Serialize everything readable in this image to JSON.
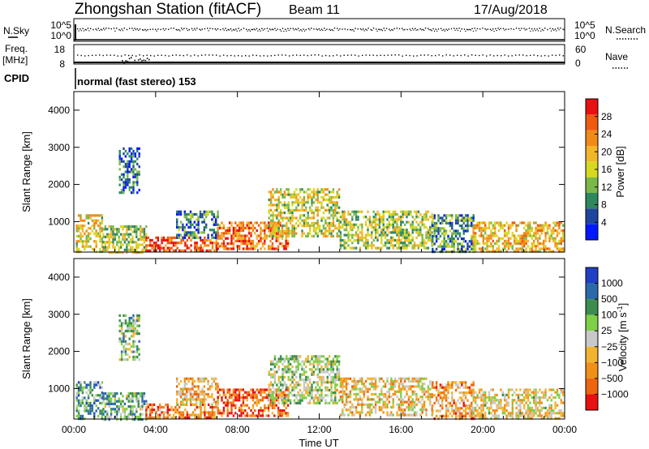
{
  "header": {
    "title": "Zhongshan Station (fitACF)",
    "beam": "Beam 11",
    "date": "17/Aug/2018"
  },
  "noise_panel": {
    "left_label": "N.Sky",
    "left_ticks": [
      "10^5",
      "10^0"
    ],
    "right_ticks": [
      "10^5",
      "10^0"
    ],
    "right_label": "N.Search"
  },
  "freq_panel": {
    "left_label_1": "Freq.",
    "left_label_2": "[MHz]",
    "left_ticks": [
      "18",
      "8"
    ],
    "right_ticks": [
      "60",
      "0"
    ],
    "right_label": "Nave"
  },
  "cpid": {
    "label": "CPID",
    "text": "normal (fast stereo) 153"
  },
  "colors": {
    "power": [
      "#0018ff",
      "#1e46a0",
      "#2f8760",
      "#7ab84a",
      "#d8d820",
      "#f2b62a",
      "#f08a18",
      "#ee5a10",
      "#e81010"
    ],
    "velocity": [
      "#1f3fc4",
      "#2b6aa8",
      "#3c8c4e",
      "#7ed048",
      "#c8c8c8",
      "#f2b430",
      "#f09018",
      "#ee6510",
      "#e81010"
    ]
  },
  "chart_data": [
    {
      "type": "heatmap",
      "name": "power-panel",
      "ylabel": "Slant Range [km]",
      "xlabel": "",
      "ylim": [
        180,
        4500
      ],
      "yticks": [
        "1000",
        "2000",
        "3000",
        "4000"
      ],
      "xlim_hours": [
        0,
        24
      ],
      "colorbar": {
        "label": "Power [dB]",
        "ticks": [
          "4",
          "8",
          "12",
          "16",
          "20",
          "24",
          "28"
        ],
        "range": [
          0,
          32
        ]
      },
      "echo_regions": [
        {
          "t0": 0.1,
          "t1": 1.4,
          "r0": 200,
          "r1": 1200,
          "level": 0.55
        },
        {
          "t0": 1.4,
          "t1": 3.5,
          "r0": 200,
          "r1": 900,
          "level": 0.45
        },
        {
          "t0": 2.2,
          "t1": 3.2,
          "r0": 1800,
          "r1": 3000,
          "level": 0.2
        },
        {
          "t0": 3.5,
          "t1": 7.0,
          "r0": 200,
          "r1": 600,
          "level": 0.85
        },
        {
          "t0": 5.0,
          "t1": 7.0,
          "r0": 600,
          "r1": 1300,
          "level": 0.25
        },
        {
          "t0": 7.0,
          "t1": 10.5,
          "r0": 300,
          "r1": 1000,
          "level": 0.78
        },
        {
          "t0": 9.5,
          "t1": 13.0,
          "r0": 600,
          "r1": 1900,
          "level": 0.5
        },
        {
          "t0": 13.0,
          "t1": 17.5,
          "r0": 300,
          "r1": 1300,
          "level": 0.45
        },
        {
          "t0": 17.5,
          "t1": 19.5,
          "r0": 200,
          "r1": 1200,
          "level": 0.3
        },
        {
          "t0": 19.5,
          "t1": 23.9,
          "r0": 200,
          "r1": 1000,
          "level": 0.6
        }
      ]
    },
    {
      "type": "heatmap",
      "name": "velocity-panel",
      "ylabel": "Slant Range [km]",
      "xlabel": "Time UT",
      "ylim": [
        180,
        4500
      ],
      "yticks": [
        "1000",
        "2000",
        "3000",
        "4000"
      ],
      "xticks": [
        "00:00",
        "04:00",
        "08:00",
        "12:00",
        "16:00",
        "20:00",
        "00:00"
      ],
      "xlim_hours": [
        0,
        24
      ],
      "colorbar": {
        "label": "Velocity [m s",
        "label_sup": "-1",
        "label_close": "]",
        "ticks": [
          "1000",
          "500",
          "100",
          "25",
          "−25",
          "−100",
          "−500",
          "−1000"
        ]
      },
      "echo_regions": [
        {
          "t0": 0.1,
          "t1": 1.4,
          "r0": 200,
          "r1": 1200,
          "level": 0.3
        },
        {
          "t0": 1.4,
          "t1": 3.5,
          "r0": 200,
          "r1": 900,
          "level": 0.35
        },
        {
          "t0": 2.2,
          "t1": 3.2,
          "r0": 1800,
          "r1": 3000,
          "level": 0.4
        },
        {
          "t0": 3.5,
          "t1": 7.0,
          "r0": 200,
          "r1": 600,
          "level": 0.78
        },
        {
          "t0": 5.0,
          "t1": 7.0,
          "r0": 600,
          "r1": 1300,
          "level": 0.65
        },
        {
          "t0": 7.0,
          "t1": 10.5,
          "r0": 300,
          "r1": 1000,
          "level": 0.85
        },
        {
          "t0": 9.5,
          "t1": 13.0,
          "r0": 600,
          "r1": 1900,
          "level": 0.45
        },
        {
          "t0": 13.0,
          "t1": 17.5,
          "r0": 300,
          "r1": 1300,
          "level": 0.6
        },
        {
          "t0": 17.5,
          "t1": 19.5,
          "r0": 200,
          "r1": 1200,
          "level": 0.7
        },
        {
          "t0": 19.5,
          "t1": 23.9,
          "r0": 200,
          "r1": 1000,
          "level": 0.55
        }
      ]
    }
  ]
}
